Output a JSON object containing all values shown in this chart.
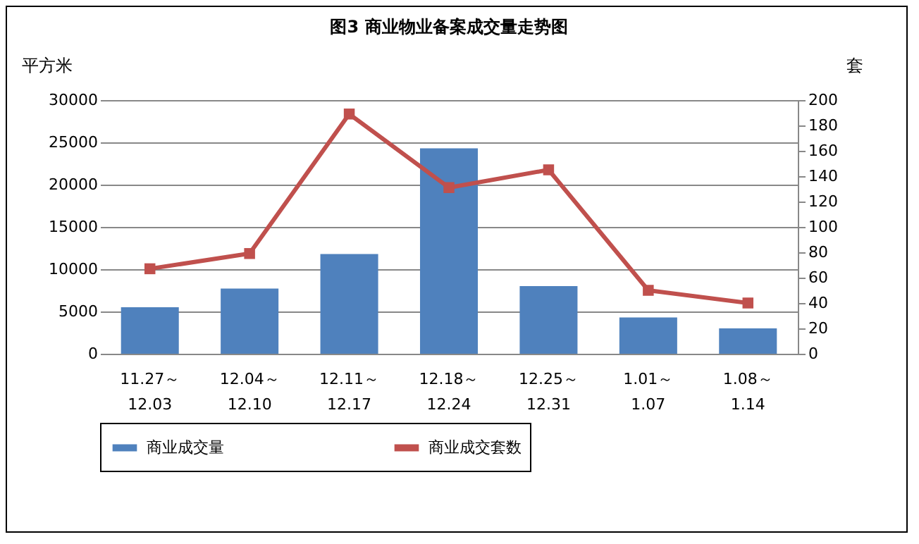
{
  "chart_data": {
    "type": "bar",
    "title": "图3   商业物业备案成交量走势图",
    "ylabel": "平方米",
    "y2label": "套",
    "categories": [
      "11.27～\n12.03",
      "12.04～\n12.10",
      "12.11～\n12.17",
      "12.18～\n12.24",
      "12.25～\n12.31",
      "1.01～\n1.07",
      "1.08～\n1.14"
    ],
    "series": [
      {
        "name": "商业成交量",
        "type": "bar",
        "color": "#4f81bd",
        "values": [
          5500,
          7700,
          11800,
          24300,
          8000,
          4300,
          3000
        ]
      },
      {
        "name": "商业成交套数",
        "type": "line",
        "axis": "y2",
        "color": "#c0504d",
        "marker": "square",
        "values": [
          67,
          79,
          189,
          131,
          145,
          50,
          40
        ]
      }
    ],
    "ylim": [
      0,
      30000
    ],
    "yticks": [
      0,
      5000,
      10000,
      15000,
      20000,
      25000,
      30000
    ],
    "y2lim": [
      0,
      200
    ],
    "y2ticks": [
      0,
      20,
      40,
      60,
      80,
      100,
      120,
      140,
      160,
      180,
      200
    ],
    "grid": "y",
    "legend": "bottom"
  }
}
